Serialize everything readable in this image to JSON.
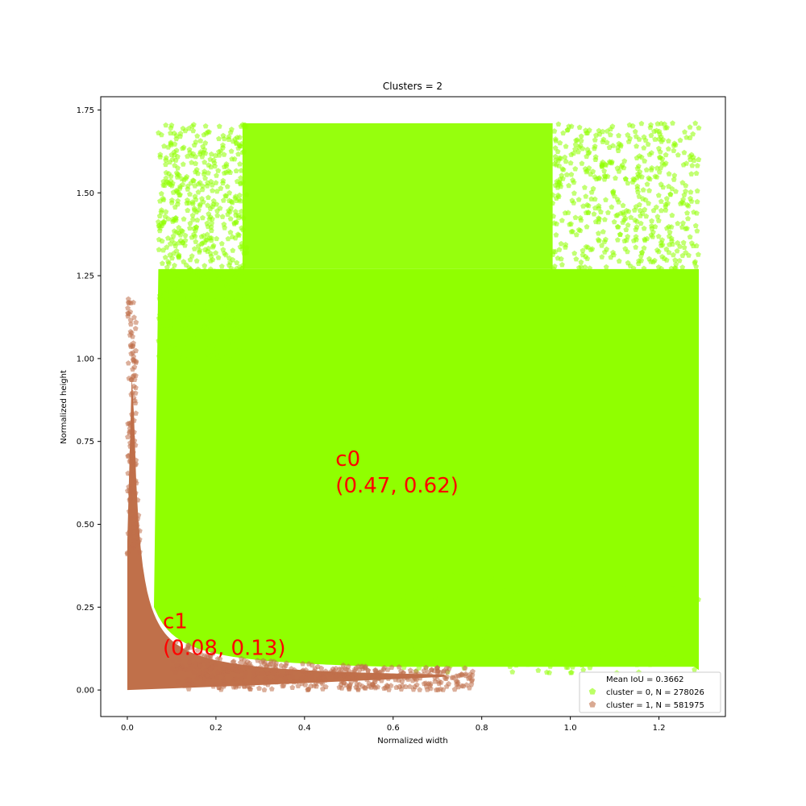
{
  "chart_data": {
    "type": "scatter",
    "title": "Clusters = 2",
    "xlabel": "Normalized width",
    "ylabel": "Normalized height",
    "xlim": [
      -0.06,
      1.35
    ],
    "ylim": [
      -0.08,
      1.79
    ],
    "xticks": [
      0.0,
      0.2,
      0.4,
      0.6,
      0.8,
      1.0,
      1.2
    ],
    "xtick_labels": [
      "0.0",
      "0.2",
      "0.4",
      "0.6",
      "0.8",
      "1.0",
      "1.2"
    ],
    "yticks": [
      0.0,
      0.25,
      0.5,
      0.75,
      1.0,
      1.25,
      1.5,
      1.75
    ],
    "ytick_labels": [
      "0.00",
      "0.25",
      "0.50",
      "0.75",
      "1.00",
      "1.25",
      "1.50",
      "1.75"
    ],
    "grid": false,
    "legend_placement": "lower-right",
    "legend": [
      {
        "label": "Mean IoU = 0.3662",
        "marker": "none"
      },
      {
        "label": "cluster = 0, N = 278026",
        "color": "#90ff00"
      },
      {
        "label": "cluster = 1, N = 581975",
        "color": "#c0704a"
      }
    ],
    "series": [
      {
        "cluster": 0,
        "color": "#90ff00",
        "marker": "pentagon",
        "x_range": [
          0.05,
          1.29
        ],
        "y_range": [
          0.05,
          1.71
        ]
      },
      {
        "cluster": 1,
        "color": "#c0704a",
        "marker": "pentagon",
        "x_range": [
          0.0,
          0.78
        ],
        "y_range": [
          0.0,
          1.2
        ]
      }
    ],
    "annotations": [
      {
        "name": "c0",
        "line1": "c0",
        "line2": "(0.47, 0.62)",
        "x": 0.47,
        "y": 0.62,
        "color": "#ff0000"
      },
      {
        "name": "c1",
        "line1": "c1",
        "line2": "(0.08, 0.13)",
        "x": 0.08,
        "y": 0.13,
        "color": "#ff0000"
      }
    ]
  }
}
